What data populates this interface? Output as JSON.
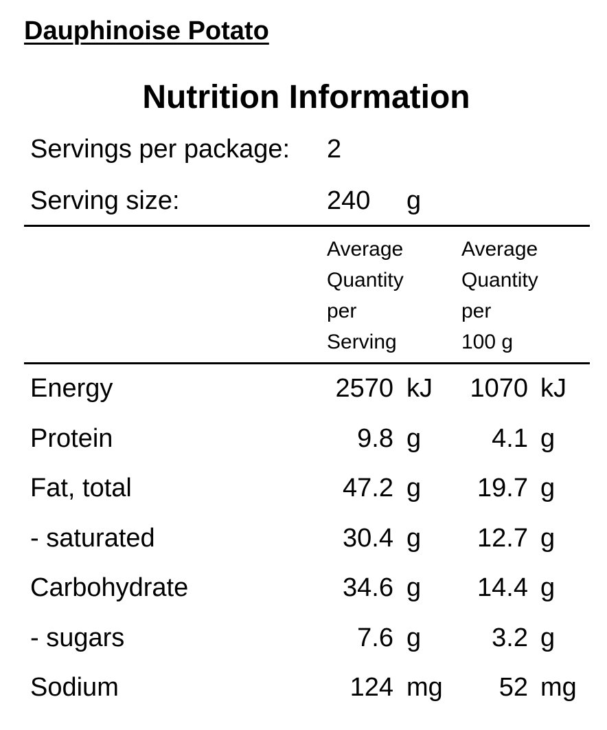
{
  "product": {
    "name": "Dauphinoise Potato"
  },
  "panel": {
    "title": "Nutrition Information",
    "servings_label": "Servings per package:",
    "servings_value": "2",
    "serving_size_label": "Serving size:",
    "serving_size_value": "240",
    "serving_size_unit": "g"
  },
  "columns": [
    {
      "lines": [
        "Average",
        "Quantity",
        "per",
        "Serving"
      ]
    },
    {
      "lines": [
        "Average",
        "Quantity",
        "per",
        "100 g"
      ]
    }
  ],
  "nutrients": [
    {
      "name": "Energy",
      "per_serving": "2570",
      "per_100g": "1070",
      "unit": "kJ"
    },
    {
      "name": "Protein",
      "per_serving": "9.8",
      "per_100g": "4.1",
      "unit": "g"
    },
    {
      "name": "Fat, total",
      "per_serving": "47.2",
      "per_100g": "19.7",
      "unit": "g"
    },
    {
      "name": "- saturated",
      "per_serving": "30.4",
      "per_100g": "12.7",
      "unit": "g"
    },
    {
      "name": "Carbohydrate",
      "per_serving": "34.6",
      "per_100g": "14.4",
      "unit": "g"
    },
    {
      "name": "- sugars",
      "per_serving": "7.6",
      "per_100g": "3.2",
      "unit": "g"
    },
    {
      "name": "Sodium",
      "per_serving": "124",
      "per_100g": "52",
      "unit": "mg"
    }
  ]
}
